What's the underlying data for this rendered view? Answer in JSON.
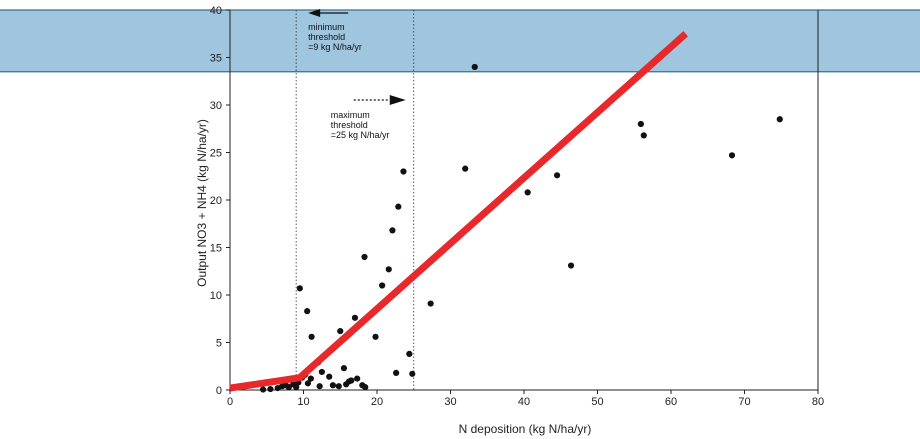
{
  "chart_data": {
    "type": "scatter",
    "title": "",
    "xlabel": "N deposition (kg N/ha/yr)",
    "ylabel": "Output NO3 + NH4 (kg N/ha/yr)",
    "xlim": [
      0,
      80
    ],
    "ylim": [
      0,
      40
    ],
    "xticks": [
      0,
      10,
      20,
      30,
      40,
      50,
      60,
      70,
      80
    ],
    "yticks": [
      0,
      5,
      10,
      15,
      20,
      25,
      30,
      35,
      40
    ],
    "grid": false,
    "legend": "none",
    "highlight_band": {
      "y_range": [
        33.5,
        40
      ],
      "color": "#9fc5df"
    },
    "thresholds": [
      {
        "x": 9,
        "lines": [
          "minimum",
          "threshold",
          "=9 kg N/ha/yr"
        ],
        "arrow": "left"
      },
      {
        "x": 25,
        "lines": [
          "maximum",
          "threshold",
          "=25 kg N/ha/yr"
        ],
        "arrow": "right"
      }
    ],
    "trend_line": {
      "color": "#e8282b",
      "points": [
        [
          0,
          0.2
        ],
        [
          9.5,
          1.3
        ],
        [
          62,
          37.5
        ]
      ]
    },
    "points": [
      [
        33.3,
        34.0
      ],
      [
        9.5,
        10.7
      ],
      [
        10.5,
        8.3
      ],
      [
        11.1,
        5.6
      ],
      [
        12.0,
        2.9
      ],
      [
        12.5,
        1.9
      ],
      [
        13.5,
        1.4
      ],
      [
        14.0,
        0.5
      ],
      [
        14.8,
        0.4
      ],
      [
        15.5,
        2.3
      ],
      [
        15.8,
        0.6
      ],
      [
        16.5,
        1.0
      ],
      [
        17.0,
        7.6
      ],
      [
        15.0,
        6.2
      ],
      [
        18.3,
        14.0
      ],
      [
        18.0,
        0.5
      ],
      [
        19.8,
        5.6
      ],
      [
        20.7,
        11.0
      ],
      [
        21.6,
        12.7
      ],
      [
        22.1,
        16.8
      ],
      [
        22.9,
        19.3
      ],
      [
        23.6,
        23.0
      ],
      [
        24.4,
        3.8
      ],
      [
        24.8,
        1.7
      ],
      [
        22.6,
        1.8
      ],
      [
        27.3,
        9.1
      ],
      [
        32.0,
        23.3
      ],
      [
        40.5,
        20.8
      ],
      [
        44.5,
        22.6
      ],
      [
        46.4,
        13.1
      ],
      [
        55.9,
        28.0
      ],
      [
        56.3,
        26.8
      ],
      [
        68.3,
        24.7
      ],
      [
        74.8,
        28.5
      ],
      [
        6.5,
        0.2
      ],
      [
        7.1,
        0.4
      ],
      [
        7.6,
        0.5
      ],
      [
        8.0,
        0.3
      ],
      [
        8.3,
        1.1
      ],
      [
        8.6,
        0.6
      ],
      [
        9.0,
        0.3
      ],
      [
        9.3,
        0.8
      ],
      [
        9.8,
        1.3
      ],
      [
        10.2,
        1.6
      ],
      [
        10.6,
        0.7
      ],
      [
        11.0,
        1.2
      ],
      [
        12.2,
        0.4
      ],
      [
        16.2,
        0.9
      ],
      [
        17.3,
        1.2
      ],
      [
        18.4,
        0.3
      ],
      [
        5.5,
        0.1
      ],
      [
        4.5,
        0.05
      ]
    ]
  }
}
